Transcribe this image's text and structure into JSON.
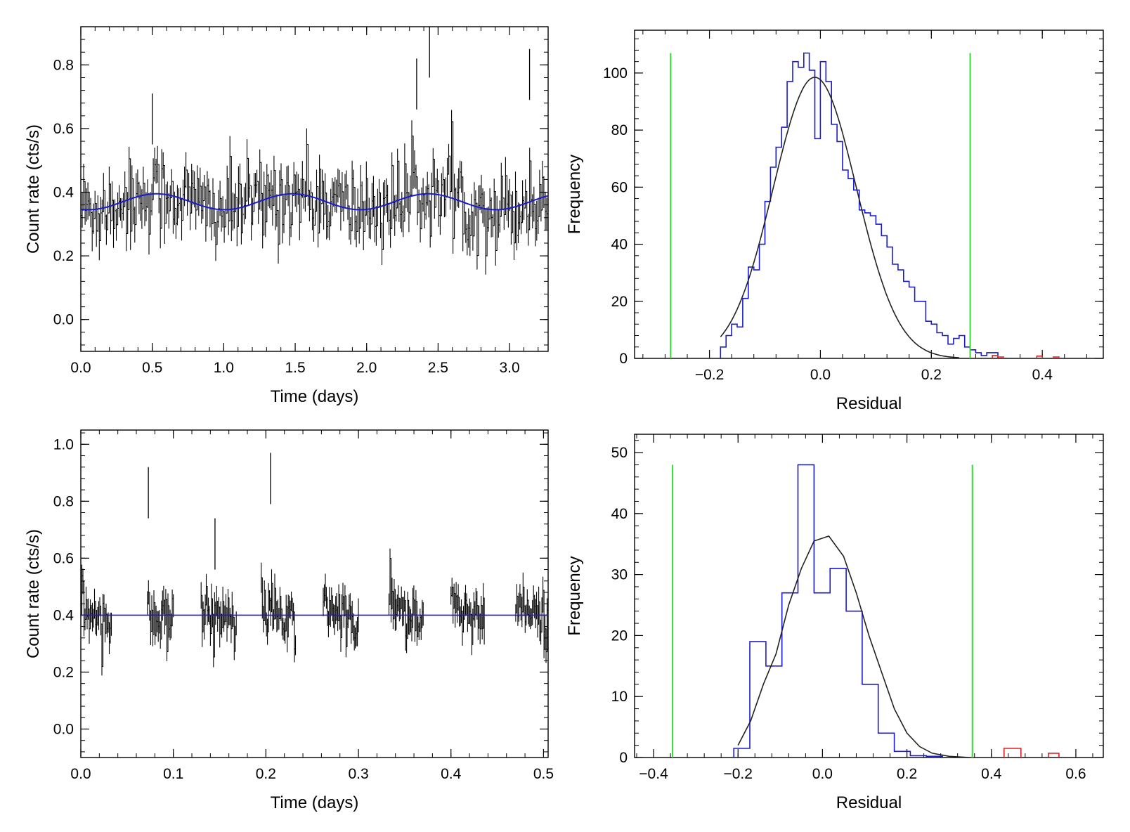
{
  "colors": {
    "data": "#000000",
    "model": "#1a1ad0",
    "threshold": "#33dd33",
    "outlier": "#e02020",
    "hist": "#1a1ad0"
  },
  "chart_data": [
    {
      "type": "line",
      "xlabel": "Time (days)",
      "ylabel": "Count rate (cts/s)",
      "xlim": [
        0,
        3.27
      ],
      "ylim": [
        -0.1,
        0.92
      ],
      "xticks": [
        0.0,
        0.5,
        1.0,
        1.5,
        2.0,
        2.5,
        3.0
      ],
      "xtick_labels": [
        "0.0",
        "0.5",
        "1.0",
        "1.5",
        "2.0",
        "2.5",
        "3.0"
      ],
      "yticks": [
        0.0,
        0.2,
        0.4,
        0.6,
        0.8
      ],
      "ytick_labels": [
        "0.0",
        "0.2",
        "0.4",
        "0.6",
        "0.8"
      ],
      "series": [
        {
          "kind": "binned-light-curve",
          "x_range": [
            0,
            3.27
          ],
          "n_points": 330,
          "mean": 0.37,
          "spread": 0.14,
          "peaks": [
            [
              2.44,
              0.92
            ],
            [
              3.14,
              0.85
            ],
            [
              2.35,
              0.82
            ],
            [
              0.5,
              0.71
            ]
          ]
        },
        {
          "kind": "model-sinusoid",
          "mean": 0.37,
          "amplitude": 0.025,
          "period": 0.95,
          "phase_peak": 0.53
        }
      ],
      "grid": false
    },
    {
      "type": "bar",
      "xlabel": "Residual",
      "ylabel": "Frequency",
      "xlim": [
        -0.335,
        0.51
      ],
      "ylim": [
        0,
        115
      ],
      "xticks": [
        -0.2,
        0.0,
        0.2,
        0.4
      ],
      "xtick_labels": [
        "−0.2",
        "0.0",
        "0.2",
        "0.4"
      ],
      "yticks": [
        0,
        20,
        40,
        60,
        80,
        100
      ],
      "ytick_labels": [
        "0",
        "20",
        "40",
        "60",
        "80",
        "100"
      ],
      "histogram": {
        "bin_start": -0.18,
        "bin_width": 0.01,
        "counts": [
          4,
          8,
          12,
          11,
          21,
          32,
          31,
          40,
          55,
          67,
          74,
          81,
          97,
          104,
          102,
          107,
          101,
          77,
          104,
          97,
          82,
          76,
          66,
          63,
          59,
          52,
          51,
          50,
          47,
          43,
          39,
          33,
          31,
          27,
          25,
          20,
          20,
          13,
          12,
          9,
          8,
          5,
          7,
          8,
          4,
          3,
          2,
          1,
          2,
          2
        ]
      },
      "outliers": {
        "bins": [
          [
            0.31,
            0.32,
            1
          ],
          [
            0.32,
            0.33,
            0.5
          ],
          [
            0.39,
            0.4,
            0.8
          ],
          [
            0.42,
            0.43,
            0.5
          ]
        ]
      },
      "gaussian_fit": {
        "amplitude": 98.5,
        "mean": -0.01,
        "sigma": 0.075,
        "x_range": [
          -0.18,
          0.25
        ]
      },
      "thresholds": [
        -0.27,
        0.27
      ],
      "threshold_height": 107
    },
    {
      "type": "line",
      "xlabel": "Time (days)",
      "ylabel": "Count rate (cts/s)",
      "xlim": [
        0,
        0.505
      ],
      "ylim": [
        -0.1,
        1.05
      ],
      "xticks": [
        0.0,
        0.1,
        0.2,
        0.3,
        0.4,
        0.5
      ],
      "xtick_labels": [
        "0.0",
        "0.1",
        "0.2",
        "0.3",
        "0.4",
        "0.5"
      ],
      "yticks": [
        0.0,
        0.2,
        0.4,
        0.6,
        0.8,
        1.0
      ],
      "ytick_labels": [
        "0.0",
        "0.2",
        "0.4",
        "0.6",
        "0.8",
        "1.0"
      ],
      "series": [
        {
          "kind": "binned-light-curve",
          "segments": [
            [
              0.0,
              0.033
            ],
            [
              0.072,
              0.1
            ],
            [
              0.13,
              0.168
            ],
            [
              0.195,
              0.232
            ],
            [
              0.262,
              0.3
            ],
            [
              0.333,
              0.37
            ],
            [
              0.4,
              0.436
            ],
            [
              0.47,
              0.505
            ]
          ],
          "mean": 0.4,
          "spread": 0.08,
          "spikes": [
            [
              0.073,
              0.83
            ],
            [
              0.205,
              0.88
            ],
            [
              0.145,
              0.65
            ]
          ]
        },
        {
          "kind": "model-constant",
          "value": 0.4
        }
      ],
      "grid": false
    },
    {
      "type": "bar",
      "xlabel": "Residual",
      "ylabel": "Frequency",
      "xlim": [
        -0.445,
        0.665
      ],
      "ylim": [
        0,
        53
      ],
      "xticks": [
        -0.4,
        -0.2,
        0.0,
        0.2,
        0.4,
        0.6
      ],
      "xtick_labels": [
        "−0.4",
        "−0.2",
        "0.0",
        "0.2",
        "0.4",
        "0.6"
      ],
      "yticks": [
        0,
        10,
        20,
        30,
        40,
        50
      ],
      "ytick_labels": [
        "0",
        "10",
        "20",
        "30",
        "40",
        "50"
      ],
      "histogram": {
        "bin_start": -0.21,
        "bin_width": 0.038,
        "counts": [
          1.5,
          19,
          15,
          27,
          48,
          27,
          31,
          24,
          12,
          4,
          1,
          0.3,
          0.2
        ]
      },
      "outliers": {
        "bins": [
          [
            0.43,
            0.47,
            1.5
          ],
          [
            0.535,
            0.56,
            0.7
          ]
        ]
      },
      "gaussian_fit": {
        "points": [
          [
            -0.2,
            2
          ],
          [
            -0.17,
            6
          ],
          [
            -0.14,
            12
          ],
          [
            -0.11,
            17
          ],
          [
            -0.08,
            25
          ],
          [
            -0.05,
            31
          ],
          [
            -0.02,
            35.5
          ],
          [
            0.015,
            36.3
          ],
          [
            0.05,
            33
          ],
          [
            0.08,
            27
          ],
          [
            0.11,
            20
          ],
          [
            0.14,
            14
          ],
          [
            0.17,
            8
          ],
          [
            0.2,
            4
          ],
          [
            0.23,
            1.8
          ],
          [
            0.26,
            0.7
          ],
          [
            0.3,
            0.2
          ],
          [
            0.35,
            0
          ]
        ]
      },
      "thresholds": [
        -0.355,
        0.355
      ],
      "threshold_height": 48
    }
  ]
}
